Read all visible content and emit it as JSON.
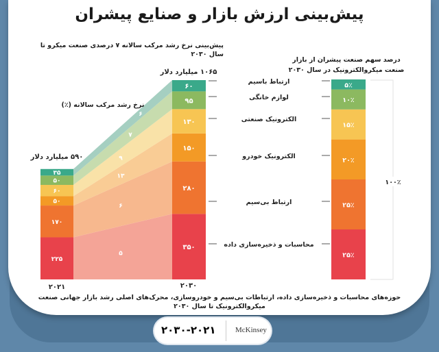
{
  "title": "پیش‌بینی ارزش بازار و صنایع پیشران",
  "subtitle": "پیش‌بینی نرخ رشد مرکب سالانه ۷ درصدی صنعت میکرو تا سال ۲۰۳۰",
  "right_header": "درصد سهم صنعت پیشران از بازار صنعت میکروالکترونیک در سال ۲۰۳۰",
  "footer": "حوزه‌های محاسبات و ذخیره‌سازی داده، ارتباطات بی‌سیم و خودروسازی، محرک‌های اصلی رشد بازار جهانی صنعت میکروالکترونیک تا سال ۲۰۳۰",
  "source_pill": {
    "years": "۲۰۳۰-۲۰۲۱",
    "source": "McKinsey"
  },
  "chart_data": {
    "type": "stacked-bar",
    "categories": [
      "۲۰۲۱",
      "۲۰۳۰"
    ],
    "totals": [
      "۵۹۰ میلیارد دلار",
      "۱۰۶۵ میلیارد دلار"
    ],
    "cagr_label": "نرخ رشد مرکب سالانه (٪)",
    "series": [
      {
        "name": "محاسبات و ذخیره‌سازی داده",
        "values": [
          225,
          350
        ],
        "cagr": 5,
        "share_2030": 25,
        "color": "#e8424b",
        "flow": "#f4a497"
      },
      {
        "name": "ارتباط بی‌سیم",
        "values": [
          170,
          280
        ],
        "cagr": 6,
        "share_2030": 25,
        "color": "#ef7430",
        "flow": "#f7b88e"
      },
      {
        "name": "الکترونیک خودرو",
        "values": [
          50,
          150
        ],
        "cagr": 13,
        "share_2030": 20,
        "color": "#f39a26",
        "flow": "#f9cc95"
      },
      {
        "name": "الکترونیک صنعتی",
        "values": [
          60,
          130
        ],
        "cagr": 9,
        "share_2030": 15,
        "color": "#f7c553",
        "flow": "#f9e2a8"
      },
      {
        "name": "لوازم خانگی",
        "values": [
          50,
          95
        ],
        "cagr": 7,
        "share_2030": 10,
        "color": "#8cb960",
        "flow": "#c7dcae"
      },
      {
        "name": "ارتباط باسیم",
        "values": [
          35,
          60
        ],
        "cagr": 6,
        "share_2030": 5,
        "color": "#3aa98a",
        "flow": "#a5cfc1"
      }
    ],
    "share_total": "۱۰۰٪"
  }
}
